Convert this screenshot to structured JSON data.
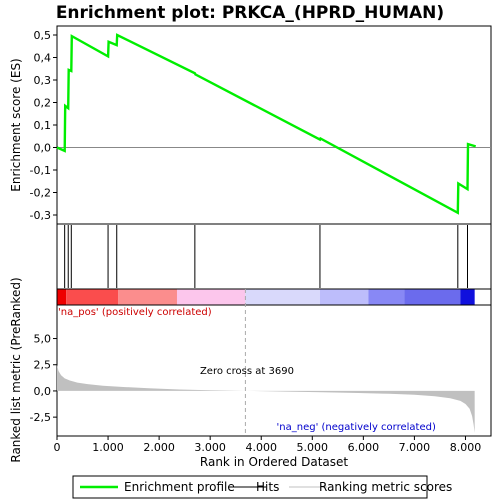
{
  "chart_data": {
    "type": "line",
    "title": "Enrichment plot: PRKCA_(HPRD_HUMAN)",
    "xlabel": "Rank in Ordered Dataset",
    "top_panel": {
      "ylabel": "Enrichment score (ES)",
      "ylim": [
        -0.34,
        0.54
      ],
      "yticks": [
        -0.3,
        -0.2,
        -0.1,
        0.0,
        0.1,
        0.2,
        0.3,
        0.4,
        0.5
      ],
      "ytick_labels": [
        "-0,3",
        "-0,2",
        "-0,1",
        "0,0",
        "0,1",
        "0,2",
        "0,3",
        "0,4",
        "0,5"
      ],
      "series": [
        {
          "name": "Enrichment profile",
          "color": "#00ee00",
          "x": [
            0,
            150,
            160,
            220,
            230,
            280,
            290,
            1000,
            1010,
            1170,
            1180,
            2700,
            2710,
            5150,
            5160,
            7850,
            7860,
            8040,
            8050,
            8200
          ],
          "y": [
            0.0,
            -0.015,
            0.185,
            0.175,
            0.345,
            0.34,
            0.495,
            0.405,
            0.47,
            0.455,
            0.5,
            0.33,
            0.325,
            0.035,
            0.04,
            -0.29,
            -0.16,
            -0.185,
            0.015,
            0.005
          ]
        }
      ]
    },
    "hits": [
      150,
      220,
      280,
      1000,
      1170,
      2700,
      5150,
      7850,
      8040
    ],
    "bottom_panel": {
      "ylabel": "Ranked list metric (PreRanked)",
      "ylim": [
        -4.3,
        8.2
      ],
      "yticks": [
        -2.5,
        0.0,
        2.5,
        5.0
      ],
      "ytick_labels": [
        "-2,5",
        "0,0",
        "2,5",
        "5,0"
      ],
      "metric_x": [
        0,
        30,
        80,
        150,
        250,
        400,
        600,
        900,
        1300,
        1800,
        2400,
        3000,
        3690,
        4500,
        5200,
        5900,
        6500,
        7000,
        7400,
        7700,
        7900,
        8000,
        8080,
        8130,
        8160,
        8180
      ],
      "metric_y": [
        2.5,
        1.9,
        1.5,
        1.2,
        1.0,
        0.8,
        0.65,
        0.5,
        0.38,
        0.26,
        0.14,
        0.06,
        0.0,
        -0.06,
        -0.13,
        -0.2,
        -0.27,
        -0.36,
        -0.5,
        -0.7,
        -0.95,
        -1.25,
        -1.7,
        -2.4,
        -3.2,
        -4.0
      ],
      "zero_cross_label": "Zero cross at 3690",
      "zero_cross_x": 3690,
      "pos_label": "'na_pos' (positively correlated)",
      "neg_label": "'na_neg' (negatively correlated)"
    },
    "xlim": [
      0,
      8500
    ],
    "xticks": [
      0,
      1000,
      2000,
      3000,
      4000,
      5000,
      6000,
      7000,
      8000
    ],
    "xtick_labels": [
      "0",
      "1.000",
      "2.000",
      "3.000",
      "4.000",
      "5.000",
      "6.000",
      "7.000",
      "8.000"
    ],
    "n_genes": 8180,
    "colorbar_segments": [
      {
        "x0": 0,
        "x1": 180,
        "color": "#ee0000"
      },
      {
        "x0": 180,
        "x1": 1200,
        "color": "#fa4d4d"
      },
      {
        "x0": 1200,
        "x1": 2350,
        "color": "#fb8d8d"
      },
      {
        "x0": 2350,
        "x1": 3690,
        "color": "#fcc6ec"
      },
      {
        "x0": 3690,
        "x1": 5150,
        "color": "#d9d9fb"
      },
      {
        "x0": 5150,
        "x1": 6100,
        "color": "#bdbdfb"
      },
      {
        "x0": 6100,
        "x1": 6800,
        "color": "#8888f5"
      },
      {
        "x0": 6800,
        "x1": 7900,
        "color": "#6b6bed"
      },
      {
        "x0": 7900,
        "x1": 8180,
        "color": "#1010dd"
      }
    ],
    "legend": {
      "placement": "bottom",
      "items": [
        {
          "label": "Enrichment profile",
          "color": "#00ee00"
        },
        {
          "label": "Hits",
          "color": "#000000"
        },
        {
          "label": "Ranking metric scores",
          "color": "#c0c0c0"
        }
      ]
    }
  }
}
